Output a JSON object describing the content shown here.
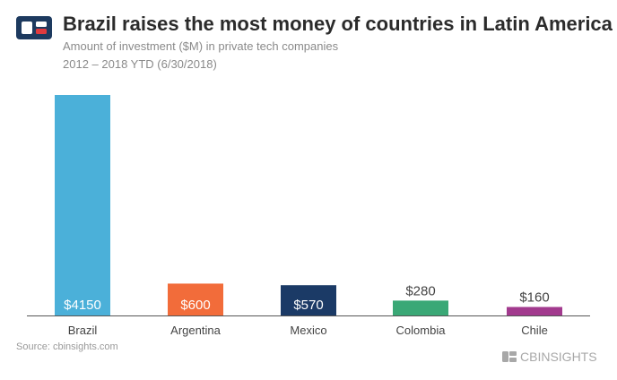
{
  "title": "Brazil raises the most money of countries in Latin America",
  "subtitle": "Amount of investment ($M) in private tech companies",
  "subtitle2": "2012 – 2018 YTD (6/30/2018)",
  "source": "Source: cbinsights.com",
  "brand": "CBINSIGHTS",
  "colors": {
    "logo_dark": "#1d3a5f",
    "logo_red": "#e03a3e",
    "axis": "#555555",
    "label_dark": "#444444"
  },
  "chart_data": {
    "type": "bar",
    "categories": [
      "Brazil",
      "Argentina",
      "Mexico",
      "Colombia",
      "Chile"
    ],
    "values": [
      4150,
      600,
      570,
      280,
      160
    ],
    "value_labels": [
      "$4150",
      "$600",
      "$570",
      "$280",
      "$160"
    ],
    "colors": [
      "#4bb0d9",
      "#f26c3a",
      "#1b3a66",
      "#3aa876",
      "#a23a8e"
    ],
    "label_inside": [
      true,
      true,
      true,
      false,
      false
    ],
    "ylim": [
      0,
      4150
    ],
    "grid": false,
    "xlabel": "",
    "ylabel": ""
  }
}
